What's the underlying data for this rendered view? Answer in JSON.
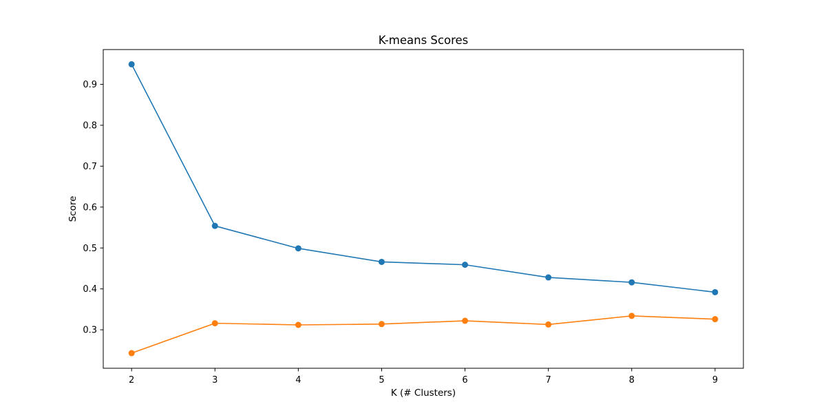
{
  "chart_data": {
    "type": "line",
    "title": "K-means Scores",
    "xlabel": "K (# Clusters)",
    "ylabel": "Score",
    "x": [
      2,
      3,
      4,
      5,
      6,
      7,
      8,
      9
    ],
    "xlim": [
      1.66,
      9.34
    ],
    "ylim": [
      0.206,
      0.985
    ],
    "xticks": [
      "2",
      "3",
      "4",
      "5",
      "6",
      "7",
      "8",
      "9"
    ],
    "yticks": [
      "0.3",
      "0.4",
      "0.5",
      "0.6",
      "0.7",
      "0.8",
      "0.9"
    ],
    "grid": false,
    "markers": true,
    "series": [
      {
        "color": "#1f77b4",
        "values": [
          0.949,
          0.554,
          0.499,
          0.466,
          0.459,
          0.428,
          0.416,
          0.392
        ]
      },
      {
        "color": "#ff7f0e",
        "values": [
          0.243,
          0.316,
          0.312,
          0.314,
          0.322,
          0.313,
          0.334,
          0.326
        ]
      }
    ]
  }
}
